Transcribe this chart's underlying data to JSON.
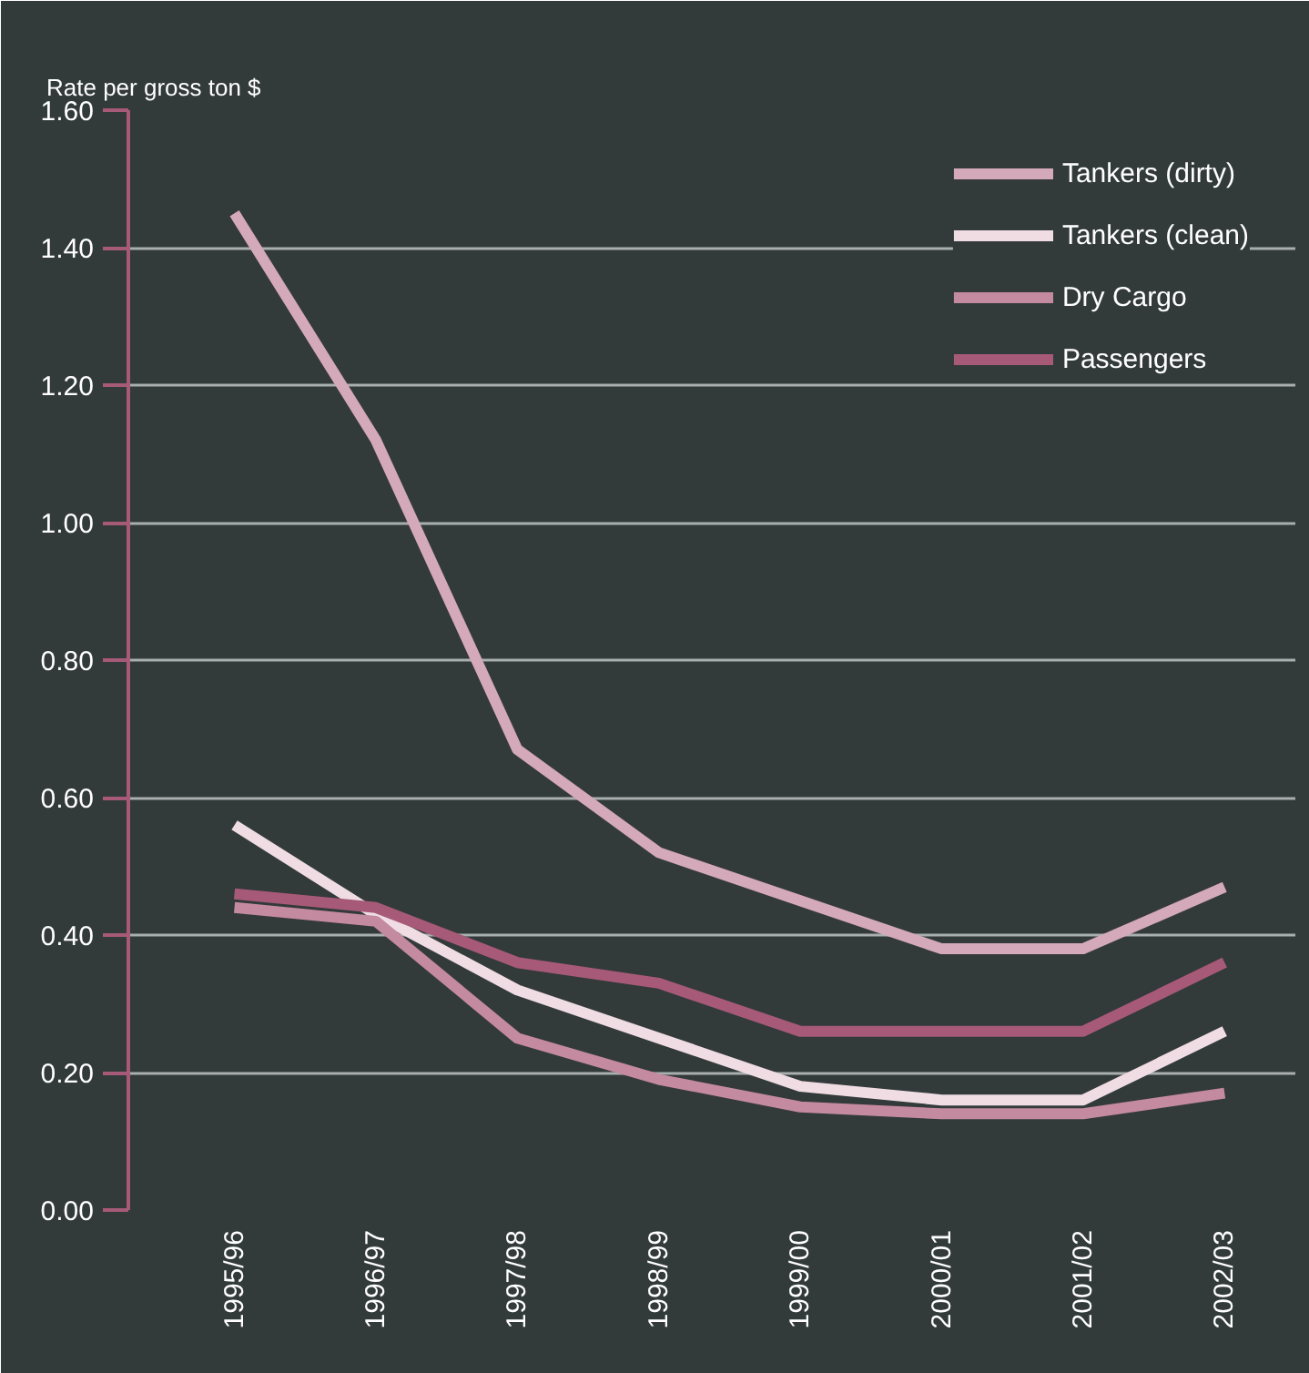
{
  "chart_data": {
    "type": "line",
    "ylabel": "Rate per gross ton $",
    "categories": [
      "1995/96",
      "1996/97",
      "1997/98",
      "1998/99",
      "1999/00",
      "2000/01",
      "2001/02",
      "2002/03"
    ],
    "series": [
      {
        "name": "Tankers (dirty)",
        "color": "#d4a9b9",
        "values": [
          1.45,
          1.12,
          0.67,
          0.52,
          0.45,
          0.38,
          0.38,
          0.47
        ]
      },
      {
        "name": "Tankers (clean)",
        "color": "#efdde3",
        "values": [
          0.56,
          0.43,
          0.32,
          0.25,
          0.18,
          0.16,
          0.16,
          0.26
        ]
      },
      {
        "name": "Dry Cargo",
        "color": "#c48aa0",
        "values": [
          0.44,
          0.42,
          0.25,
          0.19,
          0.15,
          0.14,
          0.14,
          0.17
        ]
      },
      {
        "name": "Passengers",
        "color": "#a65a78",
        "values": [
          0.46,
          0.44,
          0.36,
          0.33,
          0.26,
          0.26,
          0.26,
          0.36
        ]
      }
    ],
    "ylim": [
      0,
      1.6
    ],
    "yticks": [
      {
        "value": 0,
        "label": "0.00"
      },
      {
        "value": 0.2,
        "label": "0.20"
      },
      {
        "value": 0.4,
        "label": "0.40"
      },
      {
        "value": 0.6,
        "label": "0.60"
      },
      {
        "value": 0.8,
        "label": "0.80"
      },
      {
        "value": 1.0,
        "label": "1.00"
      },
      {
        "value": 1.2,
        "label": "1.20"
      },
      {
        "value": 1.4,
        "label": "1.40"
      },
      {
        "value": 1.6,
        "label": "1.60"
      }
    ],
    "grid": "y",
    "legend": "top right",
    "marker": "none",
    "line_style": "solid"
  }
}
